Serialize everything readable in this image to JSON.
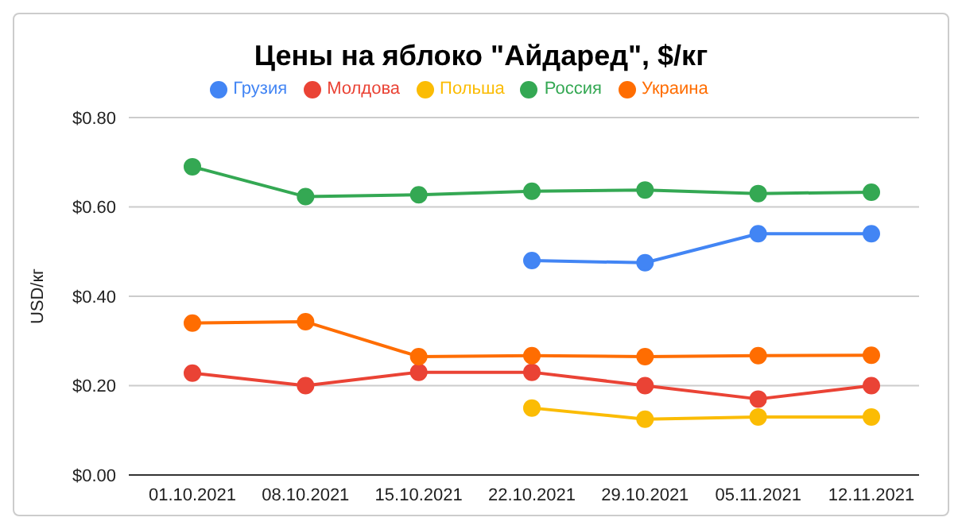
{
  "chart_data": {
    "type": "line",
    "title": "Цены на яблоко \"Айдаред\", $/кг",
    "ylabel": "USD/кг",
    "categories": [
      "01.10.2021",
      "08.10.2021",
      "15.10.2021",
      "22.10.2021",
      "29.10.2021",
      "05.11.2021",
      "12.11.2021"
    ],
    "series": [
      {
        "name": "Грузия",
        "color": "#4285f4",
        "values": [
          null,
          null,
          null,
          0.48,
          0.475,
          0.54,
          0.54
        ]
      },
      {
        "name": "Молдова",
        "color": "#ea4335",
        "values": [
          0.228,
          0.2,
          0.23,
          0.23,
          0.2,
          0.17,
          0.2
        ]
      },
      {
        "name": "Польша",
        "color": "#fbbc04",
        "values": [
          null,
          null,
          null,
          0.15,
          0.125,
          0.13,
          0.13
        ]
      },
      {
        "name": "Россия",
        "color": "#34a853",
        "values": [
          0.69,
          0.623,
          0.627,
          0.635,
          0.638,
          0.63,
          0.633
        ]
      },
      {
        "name": "Украина",
        "color": "#ff6d01",
        "values": [
          0.34,
          0.343,
          0.265,
          0.267,
          0.265,
          0.267,
          0.268
        ]
      }
    ],
    "ylim": [
      0,
      0.8
    ],
    "yticks": [
      {
        "value": 0,
        "label": "$0.00"
      },
      {
        "value": 0.2,
        "label": "$0.20"
      },
      {
        "value": 0.4,
        "label": "$0.40"
      },
      {
        "value": 0.6,
        "label": "$0.60"
      },
      {
        "value": 0.8,
        "label": "$0.80"
      }
    ],
    "grid": "y",
    "legend": "top",
    "marker": "circle",
    "line_style": "solid"
  }
}
